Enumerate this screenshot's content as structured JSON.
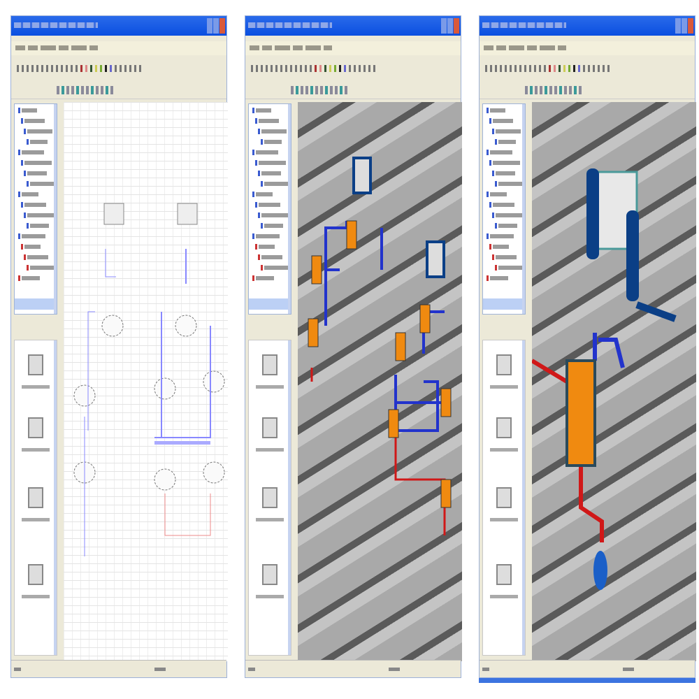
{
  "panels": [
    {
      "id": "schematic",
      "view": "2d-schematic",
      "background": "#ffffff"
    },
    {
      "id": "3d-overview",
      "view": "3d-model",
      "background": "#a9a9a9"
    },
    {
      "id": "3d-closeup",
      "view": "3d-model-zoomed",
      "background": "#a9a9a9"
    }
  ],
  "colors": {
    "titlebar": "#0a4fe0",
    "component": "#f08a10",
    "pipe_blue": "#2233cc",
    "pipe_red": "#d01818",
    "valve": "#0b3f86"
  },
  "icons": [
    "window-close-icon",
    "tree-folder-icon",
    "palette-symbol-icon"
  ]
}
